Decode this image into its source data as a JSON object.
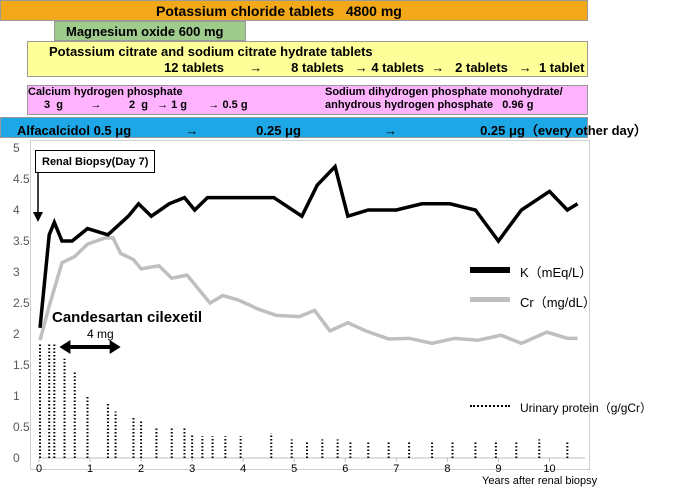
{
  "bars": {
    "kcl": {
      "text": "Potassium chloride tablets   4800 mg",
      "color": "#f2a818"
    },
    "mgo": {
      "text": "Magnesium oxide 600 mg",
      "color": "#9fcb8c"
    },
    "citrate": {
      "line1": "Potassium citrate and sodium citrate hydrate tablets",
      "line2": "12 tablets       →        8 tablets   → 4 tablets  →   2 tablets   →  1 tablet",
      "color": "#ffff99"
    },
    "calcium": {
      "line1": "Calcium hydrogen phosphate",
      "line2": "3  g         →         2  g   → 1 g       → 0.5 g",
      "sodium1": "Sodium dihydrogen phosphate monohydrate/",
      "sodium2": "anhydrous hydrogen phosphate   0.96 g",
      "color": "#ffb3ff"
    },
    "alfa": {
      "text": "Alfacalcidol 0.5 μg               →                0.25 μg                       →                       0.25 μg（every other day）",
      "color": "#1ea7e6"
    }
  },
  "annotations": {
    "biopsy": "Renal Biopsy(Day 7)",
    "candesartan": "Candesartan cilexetil",
    "candesartan_dose": "4 mg",
    "candesartan_span": [
      0.4,
      1.6
    ]
  },
  "chart_data": {
    "type": "line",
    "xlabel": "Years after renal biopsy",
    "ylabel": "",
    "xlim": [
      0,
      10.5
    ],
    "ylim": [
      0,
      5
    ],
    "xticks": [
      "0",
      "1",
      "2",
      "3",
      "4",
      "5",
      "6",
      "7",
      "8",
      "9",
      "10"
    ],
    "yticks": [
      "0",
      "0.5",
      "1",
      "1.5",
      "2",
      "2.5",
      "3",
      "3.5",
      "4",
      "4.5",
      "5"
    ],
    "grid": false,
    "legend_position": "right",
    "series": [
      {
        "name": "K（mEq/L）",
        "color": "#000000",
        "style": "solid",
        "x": [
          0.02,
          0.2,
          0.3,
          0.45,
          0.65,
          0.95,
          1.35,
          1.75,
          1.95,
          2.2,
          2.55,
          2.85,
          3.05,
          3.3,
          4.6,
          5.15,
          5.45,
          5.8,
          6.05,
          6.45,
          7.0,
          7.5,
          8.05,
          8.55,
          9.0,
          9.45,
          10.0,
          10.35,
          10.55
        ],
        "y": [
          2.1,
          3.6,
          3.8,
          3.5,
          3.5,
          3.7,
          3.6,
          3.9,
          4.1,
          3.9,
          4.1,
          4.2,
          4.0,
          4.2,
          4.2,
          3.9,
          4.4,
          4.7,
          3.9,
          4.0,
          4.0,
          4.1,
          4.1,
          4.0,
          3.5,
          4.0,
          4.3,
          4.0,
          4.1
        ]
      },
      {
        "name": "Cr（mg/dL）",
        "color": "#bfbfbf",
        "style": "solid",
        "x": [
          0.02,
          0.2,
          0.45,
          0.7,
          0.95,
          1.3,
          1.45,
          1.6,
          1.85,
          2.0,
          2.35,
          2.6,
          2.9,
          3.1,
          3.35,
          3.6,
          3.9,
          4.3,
          4.65,
          5.1,
          5.4,
          5.7,
          6.05,
          6.4,
          6.85,
          7.25,
          7.7,
          8.15,
          8.6,
          9.05,
          9.45,
          9.95,
          10.35,
          10.55
        ],
        "y": [
          1.9,
          2.45,
          3.15,
          3.25,
          3.45,
          3.55,
          3.55,
          3.3,
          3.2,
          3.05,
          3.1,
          2.9,
          2.95,
          2.75,
          2.5,
          2.62,
          2.55,
          2.4,
          2.3,
          2.28,
          2.38,
          2.05,
          2.18,
          2.05,
          1.92,
          1.93,
          1.85,
          1.93,
          1.9,
          1.98,
          1.85,
          2.03,
          1.93,
          1.93
        ]
      },
      {
        "name": "Urinary protein（g/gCr）",
        "color": "#000000",
        "style": "dotted-bars",
        "type": "bar",
        "x": [
          0.02,
          0.2,
          0.3,
          0.5,
          0.7,
          0.95,
          1.35,
          1.5,
          1.85,
          2.0,
          2.3,
          2.6,
          2.85,
          3.0,
          3.2,
          3.4,
          3.65,
          3.95,
          4.55,
          4.95,
          5.25,
          5.55,
          5.85,
          6.1,
          6.45,
          6.85,
          7.25,
          7.7,
          8.1,
          8.55,
          8.95,
          9.35,
          9.8,
          10.35
        ],
        "values": [
          1.85,
          1.85,
          1.85,
          1.6,
          1.4,
          1.0,
          0.9,
          0.75,
          0.65,
          0.6,
          0.5,
          0.5,
          0.5,
          0.38,
          0.35,
          0.35,
          0.35,
          0.35,
          0.4,
          0.3,
          0.25,
          0.3,
          0.3,
          0.25,
          0.25,
          0.25,
          0.25,
          0.28,
          0.28,
          0.25,
          0.28,
          0.28,
          0.3,
          0.25
        ]
      }
    ]
  }
}
